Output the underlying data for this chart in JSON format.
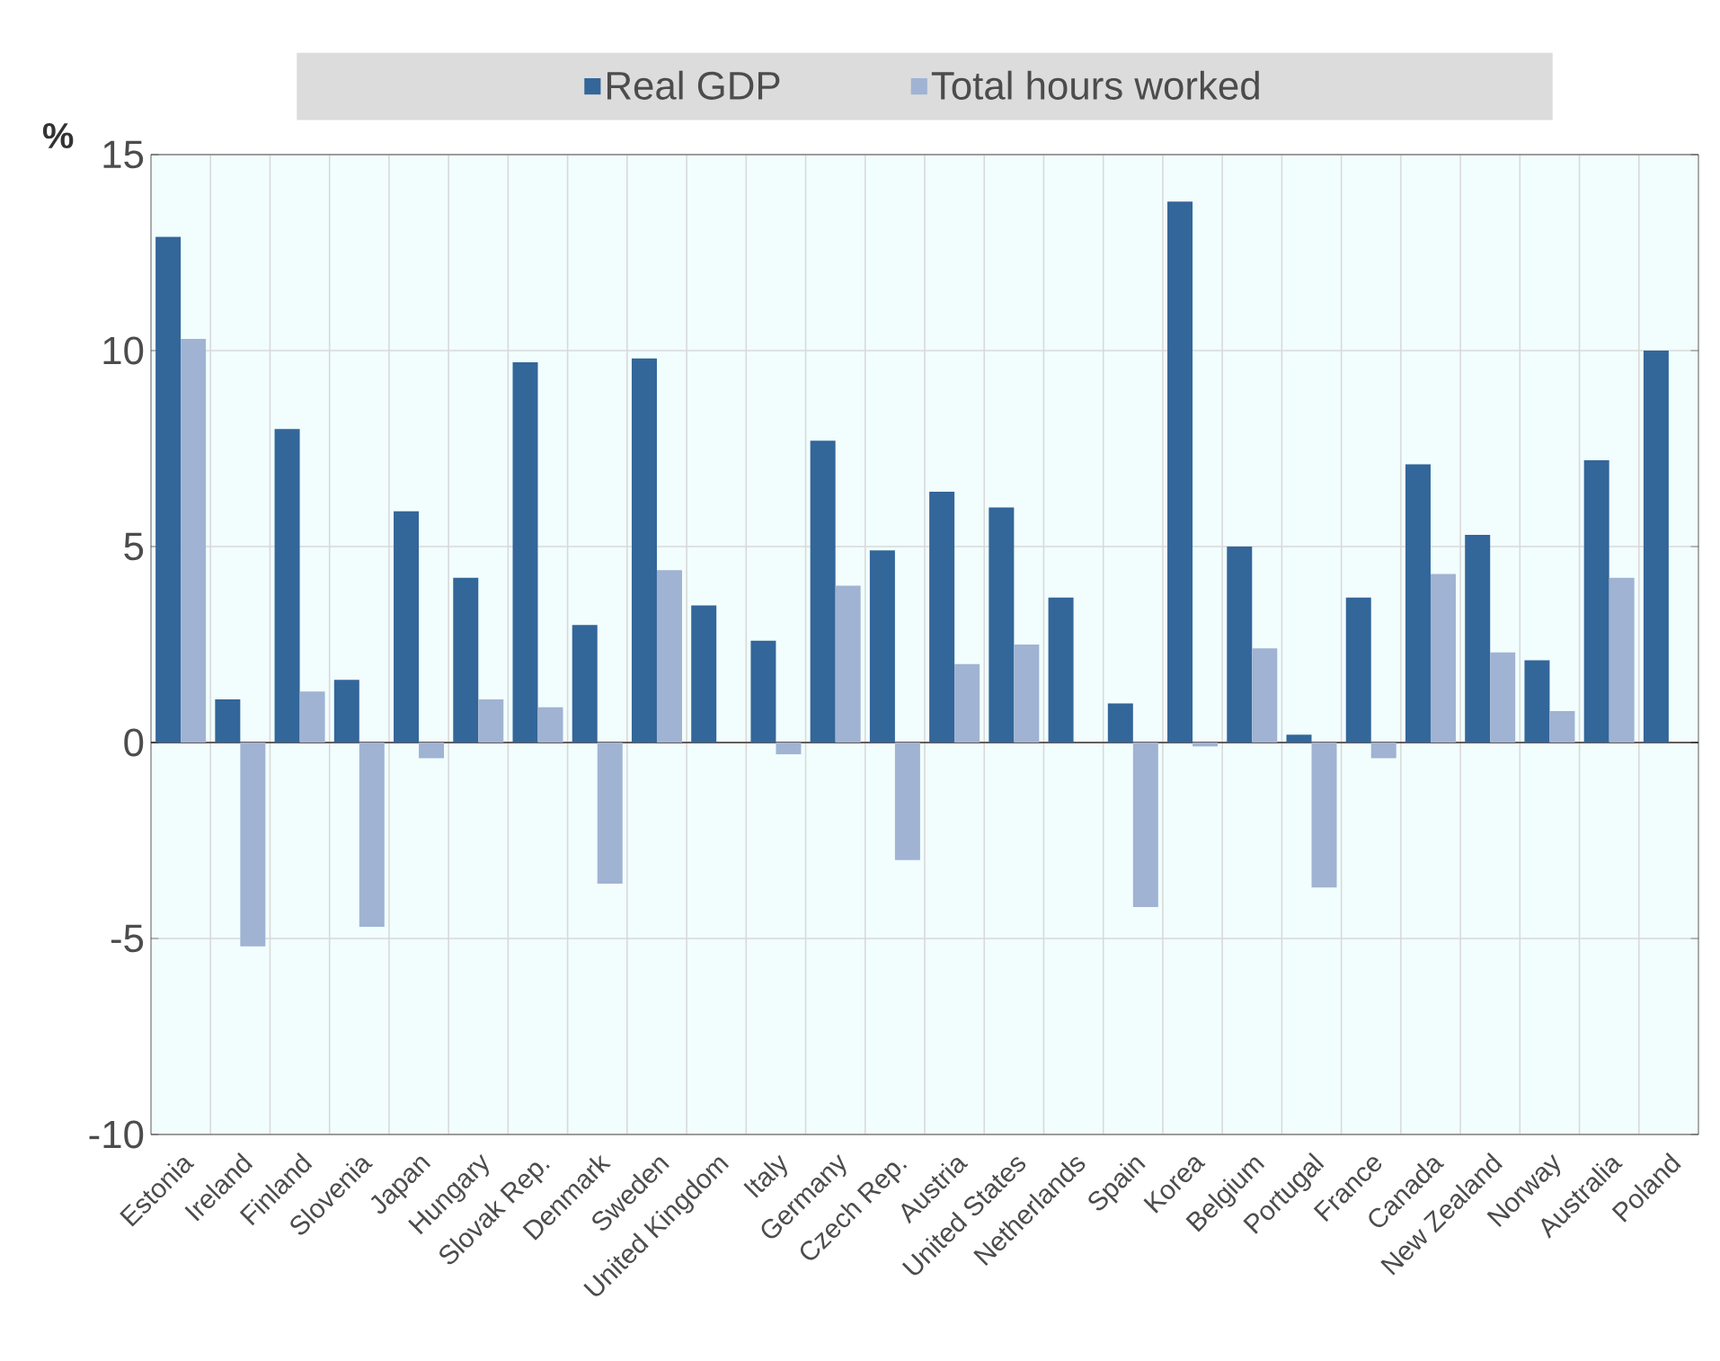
{
  "chart_data": {
    "type": "bar",
    "ylabel": "%",
    "categories": [
      "Estonia",
      "Ireland",
      "Finland",
      "Slovenia",
      "Japan",
      "Hungary",
      "Slovak Rep.",
      "Denmark",
      "Sweden",
      "United Kingdom",
      "Italy",
      "Germany",
      "Czech Rep.",
      "Austria",
      "United States",
      "Netherlands",
      "Spain",
      "Korea",
      "Belgium",
      "Portugal",
      "France",
      "Canada",
      "New Zealand",
      "Norway",
      "Australia",
      "Poland"
    ],
    "series": [
      {
        "name": "Real GDP",
        "color": "#336699",
        "values": [
          12.9,
          1.1,
          8.0,
          1.6,
          5.9,
          4.2,
          9.7,
          3.0,
          9.8,
          3.5,
          2.6,
          7.7,
          4.9,
          6.4,
          6.0,
          3.7,
          1.0,
          13.8,
          5.0,
          0.2,
          3.7,
          7.1,
          5.3,
          2.1,
          7.2,
          10.0
        ]
      },
      {
        "name": "Total hours worked",
        "color": "#a0b3d3",
        "values": [
          10.3,
          -5.2,
          1.3,
          -4.7,
          -0.4,
          1.1,
          0.9,
          -3.6,
          4.4,
          null,
          -0.3,
          4.0,
          -3.0,
          2.0,
          2.5,
          null,
          -4.2,
          -0.1,
          2.4,
          -3.7,
          -0.4,
          4.3,
          2.3,
          0.8,
          4.2,
          null
        ]
      }
    ],
    "ylim": [
      -10,
      15
    ],
    "yticks": [
      -10,
      -5,
      0,
      5,
      10,
      15
    ],
    "grid": true,
    "legend": "top"
  }
}
